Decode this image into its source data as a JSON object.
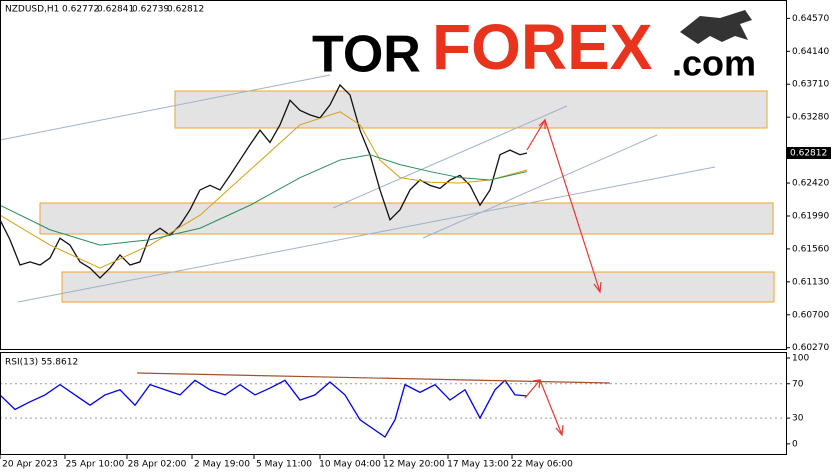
{
  "chart_data": [
    {
      "type": "line",
      "symbol": "NZDUSD,H1",
      "ohlc": [
        0.62772,
        0.62841,
        0.62739,
        0.62812
      ],
      "logo": [
        "TOR",
        "FOREX",
        ".com"
      ],
      "last_price": 0.62812,
      "xlim": [
        0,
        785
      ],
      "xticks": [
        {
          "value": 30,
          "label": "20 Apr 2023"
        },
        {
          "value": 95,
          "label": "25 Apr 10:00"
        },
        {
          "value": 157,
          "label": "28 Apr 02:00"
        },
        {
          "value": 222,
          "label": "2 May 19:00"
        },
        {
          "value": 284,
          "label": "5 May 11:00"
        },
        {
          "value": 350,
          "label": "10 May 04:00"
        },
        {
          "value": 414,
          "label": "12 May 20:00"
        },
        {
          "value": 478,
          "label": "17 May 13:00"
        },
        {
          "value": 542,
          "label": "22 May 06:00"
        }
      ],
      "ylim": [
        0.6024,
        0.6481
      ],
      "yticks": [
        {
          "value": 0.6457,
          "label": "0.64570"
        },
        {
          "value": 0.6414,
          "label": "0.64140"
        },
        {
          "value": 0.6371,
          "label": "0.63710"
        },
        {
          "value": 0.6328,
          "label": "0.63280"
        },
        {
          "value": 0.6242,
          "label": "0.62420"
        },
        {
          "value": 0.6199,
          "label": "0.61990"
        },
        {
          "value": 0.6156,
          "label": "0.61560"
        },
        {
          "value": 0.6113,
          "label": "0.61130"
        },
        {
          "value": 0.607,
          "label": "0.60700"
        },
        {
          "value": 0.6027,
          "label": "0.60270"
        }
      ],
      "series": [
        {
          "color": "#111111",
          "x": [
            0,
            10,
            20,
            30,
            40,
            50,
            60,
            70,
            80,
            90,
            100,
            110,
            120,
            130,
            140,
            150,
            160,
            170,
            180,
            190,
            200,
            210,
            220,
            230,
            240,
            250,
            260,
            270,
            280,
            290,
            300,
            310,
            320,
            330,
            340,
            350,
            360,
            370,
            380,
            390,
            400,
            410,
            420,
            430,
            440,
            450,
            460,
            470,
            480,
            490,
            500,
            510,
            520,
            527
          ],
          "values": [
            0.6194,
            0.6168,
            0.6135,
            0.6139,
            0.6135,
            0.6144,
            0.617,
            0.6161,
            0.6139,
            0.6131,
            0.6118,
            0.6131,
            0.6148,
            0.6135,
            0.6139,
            0.6174,
            0.6183,
            0.6174,
            0.6187,
            0.6207,
            0.6233,
            0.6239,
            0.6233,
            0.6252,
            0.6272,
            0.6292,
            0.6311,
            0.6295,
            0.6318,
            0.635,
            0.6337,
            0.6331,
            0.6327,
            0.6344,
            0.637,
            0.6357,
            0.6311,
            0.6279,
            0.6233,
            0.6194,
            0.6207,
            0.6233,
            0.6246,
            0.6239,
            0.6235,
            0.6246,
            0.6252,
            0.6239,
            0.6213,
            0.6233,
            0.6279,
            0.6285,
            0.6279,
            0.62812
          ]
        },
        {
          "color": "#d4a017",
          "x": [
            0,
            50,
            100,
            150,
            200,
            250,
            300,
            340,
            360,
            380,
            400,
            430,
            460,
            490,
            527
          ],
          "values": [
            0.62,
            0.6161,
            0.6131,
            0.6161,
            0.62,
            0.6259,
            0.6318,
            0.6335,
            0.6318,
            0.6272,
            0.6249,
            0.6243,
            0.6242,
            0.6246,
            0.6259
          ]
        },
        {
          "color": "#2e8b57",
          "x": [
            0,
            50,
            100,
            150,
            200,
            250,
            300,
            340,
            370,
            400,
            430,
            460,
            490,
            527
          ],
          "values": [
            0.6213,
            0.6181,
            0.6161,
            0.6168,
            0.6183,
            0.6213,
            0.6249,
            0.6272,
            0.6279,
            0.6266,
            0.6257,
            0.6249,
            0.6246,
            0.6257
          ]
        }
      ]
    },
    {
      "type": "line",
      "title": "RSI(13) 55.8612",
      "xlim": [
        0,
        785
      ],
      "ylim": [
        -13,
        107
      ],
      "yticks": [
        100,
        70,
        30,
        0
      ],
      "series": [
        {
          "color": "#0000ee",
          "x": [
            0,
            15,
            30,
            45,
            60,
            75,
            90,
            105,
            120,
            135,
            150,
            165,
            180,
            195,
            210,
            225,
            240,
            255,
            270,
            285,
            300,
            315,
            330,
            345,
            360,
            375,
            385,
            395,
            405,
            420,
            435,
            450,
            465,
            480,
            495,
            505,
            515,
            527
          ],
          "values": [
            57,
            40,
            49,
            57,
            69,
            57,
            45,
            57,
            63,
            45,
            69,
            63,
            57,
            74,
            63,
            57,
            69,
            57,
            65,
            74,
            51,
            57,
            72,
            57,
            28,
            16,
            8,
            28,
            69,
            60,
            69,
            51,
            63,
            30,
            63,
            74,
            57,
            55.8612
          ]
        }
      ]
    }
  ]
}
